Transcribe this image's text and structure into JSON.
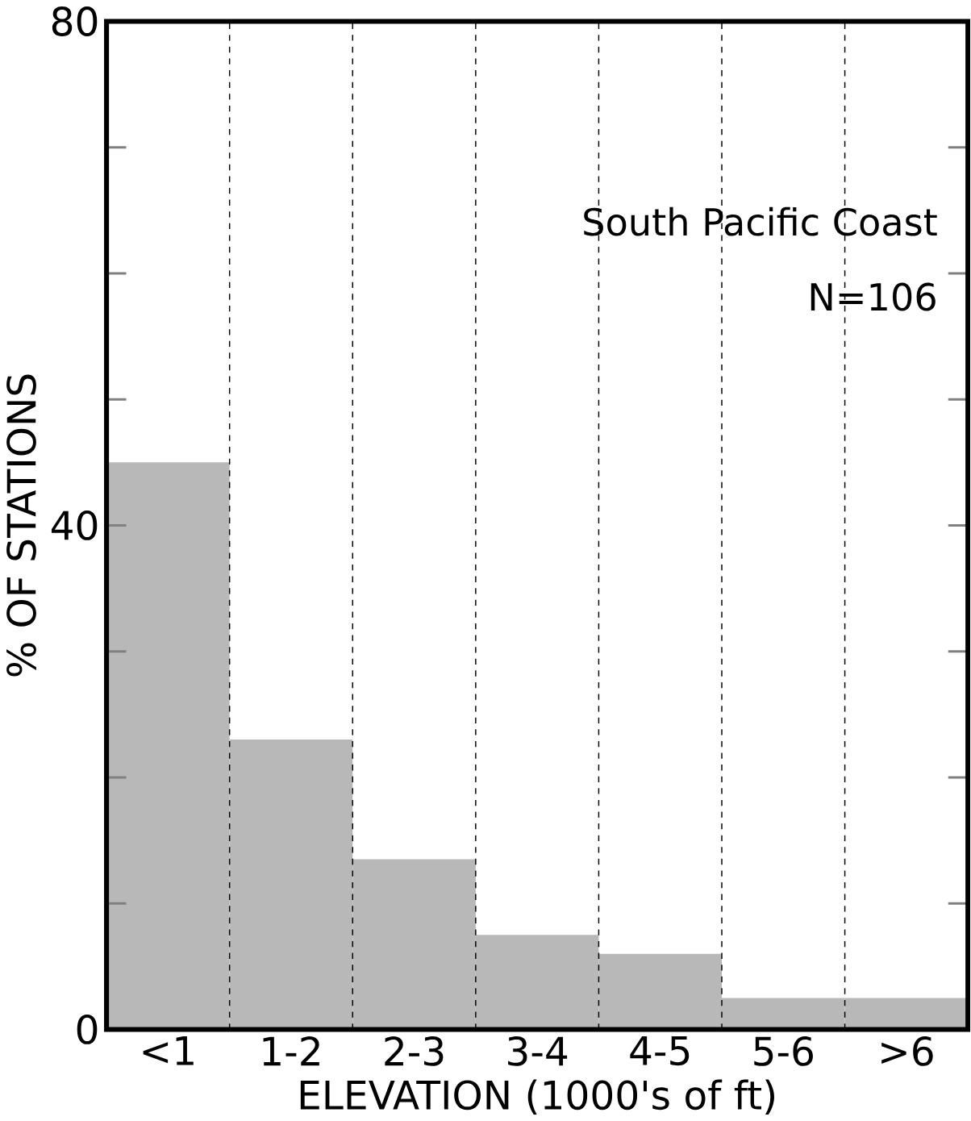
{
  "chart_data": {
    "type": "bar",
    "categories": [
      "<1",
      "1-2",
      "2-3",
      "3-4",
      "4-5",
      "5-6",
      ">6"
    ],
    "values": [
      45,
      23,
      13.5,
      7.5,
      6,
      2.5,
      2.5
    ],
    "color": "#b8b8b8",
    "xlabel": "ELEVATION (1000's of ft)",
    "ylabel": "% OF STATIONS",
    "ylim": [
      0,
      80
    ],
    "yticks": [
      0,
      {
        "value": 10,
        "label": null
      },
      {
        "value": 20,
        "label": null
      },
      {
        "value": 30,
        "label": null
      },
      40,
      {
        "value": 50,
        "label": null
      },
      {
        "value": 60,
        "label": null
      },
      {
        "value": 70,
        "label": null
      },
      80
    ],
    "grid": "x",
    "annotations": [
      "South Pacific Coast",
      "N=106"
    ]
  }
}
